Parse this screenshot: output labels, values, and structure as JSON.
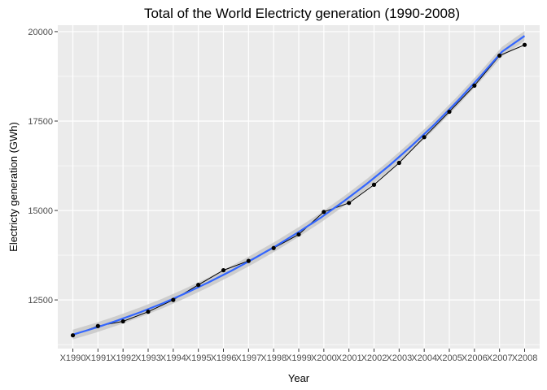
{
  "chart_data": {
    "type": "line",
    "title": "Total of the World Electricty generation (1990-2008)",
    "xlabel": "Year",
    "ylabel": "Electricty generation (GWh)",
    "categories": [
      "X1990",
      "X1991",
      "X1992",
      "X1993",
      "X1994",
      "X1995",
      "X1996",
      "X1997",
      "X1998",
      "X1999",
      "X2000",
      "X2001",
      "X2002",
      "X2003",
      "X2004",
      "X2005",
      "X2006",
      "X2007",
      "X2008"
    ],
    "values": [
      11510,
      11770,
      11900,
      12170,
      12500,
      12920,
      13330,
      13590,
      13950,
      14330,
      14960,
      15210,
      15720,
      16330,
      17050,
      17760,
      18490,
      19330,
      19630
    ],
    "smooth_fit": {
      "values": [
        11530,
        11720,
        11930,
        12160,
        12410,
        12690,
        12990,
        13310,
        13650,
        14010,
        14400,
        14810,
        15260,
        15740,
        16250,
        16810,
        17400,
        18040,
        18720,
        19440,
        19880
      ],
      "x_positions": [
        1,
        1.9,
        2.8,
        3.7,
        4.6,
        5.5,
        6.4,
        7.3,
        8.2,
        9.1,
        10,
        10.9,
        11.8,
        12.7,
        13.6,
        14.5,
        15.4,
        16.3,
        17.2,
        18.1,
        19
      ]
    },
    "ylim": [
      11140,
      20180
    ],
    "y_ticks": [
      12500,
      15000,
      17500,
      20000
    ],
    "grid": true,
    "colors": {
      "panel": "#EBEBEB",
      "grid": "#FFFFFF",
      "line": "#000000",
      "points": "#000000",
      "fit": "#3366FF",
      "band": "#C8C8C8"
    }
  }
}
